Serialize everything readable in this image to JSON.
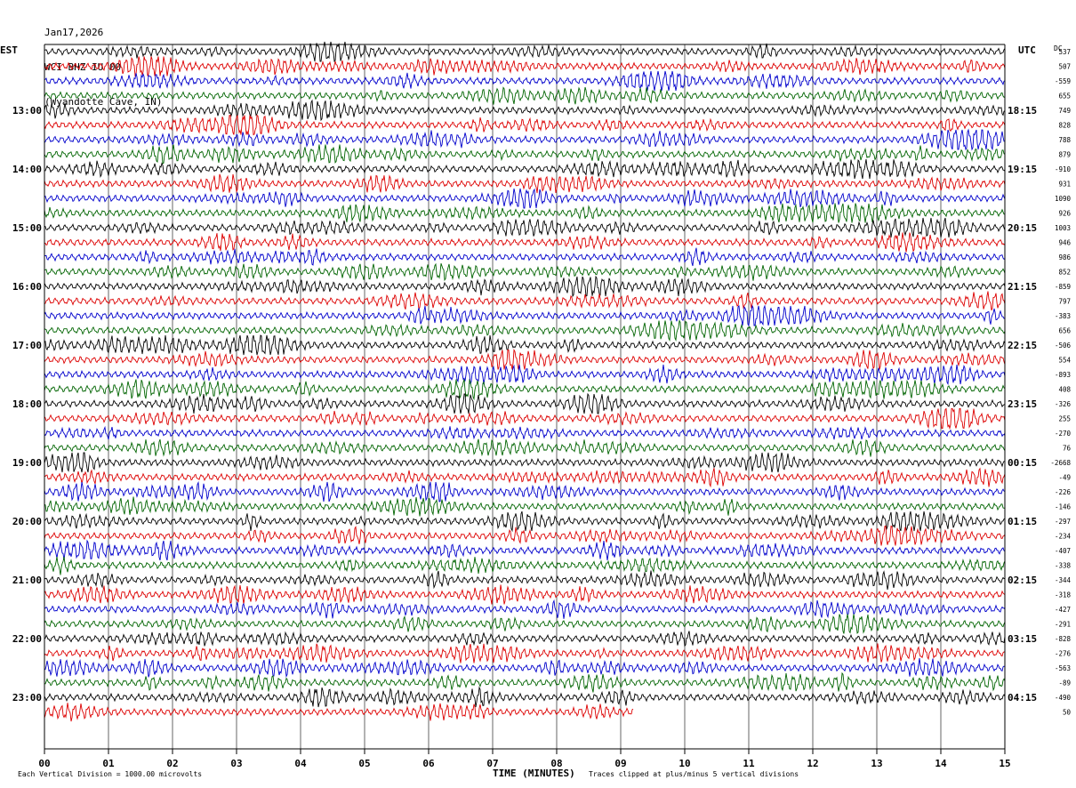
{
  "header": {
    "date": "Jan17,2026",
    "station": "WCI BHZ IU 00",
    "location": "(Wyandotte Cave, IN)"
  },
  "left_axis_title": "EST",
  "right_axis_title": "UTC",
  "dc_title": "DC",
  "footer": {
    "scale_text": "Each Vertical Division = 1000.00 microvolts",
    "clip_text": "Traces clipped at plus/minus 5 vertical divisions"
  },
  "colors": {
    "trace_cycle": [
      "#000000",
      "#dd0000",
      "#0000cc",
      "#006400"
    ],
    "grid": "#000000"
  },
  "chart_data": {
    "type": "line",
    "subtype": "helicorder",
    "xlabel": "TIME (MINUTES)",
    "xlim": [
      0,
      15
    ],
    "x_ticks": [
      "00",
      "01",
      "02",
      "03",
      "04",
      "05",
      "06",
      "07",
      "08",
      "09",
      "10",
      "11",
      "12",
      "13",
      "14",
      "15"
    ],
    "line_minutes": 15,
    "trace_count": 46,
    "last_trace_end_minute": 9.2,
    "left_labels": [
      {
        "line": 4,
        "text": "13:00"
      },
      {
        "line": 8,
        "text": "14:00"
      },
      {
        "line": 12,
        "text": "15:00"
      },
      {
        "line": 16,
        "text": "16:00"
      },
      {
        "line": 20,
        "text": "17:00"
      },
      {
        "line": 24,
        "text": "18:00"
      },
      {
        "line": 28,
        "text": "19:00"
      },
      {
        "line": 32,
        "text": "20:00"
      },
      {
        "line": 36,
        "text": "21:00"
      },
      {
        "line": 40,
        "text": "22:00"
      },
      {
        "line": 44,
        "text": "23:00"
      }
    ],
    "right_labels": [
      {
        "line": 4,
        "text": "18:15"
      },
      {
        "line": 8,
        "text": "19:15"
      },
      {
        "line": 12,
        "text": "20:15"
      },
      {
        "line": 16,
        "text": "21:15"
      },
      {
        "line": 20,
        "text": "22:15"
      },
      {
        "line": 24,
        "text": "23:15"
      },
      {
        "line": 28,
        "text": "00:15"
      },
      {
        "line": 32,
        "text": "01:15"
      },
      {
        "line": 36,
        "text": "02:15"
      },
      {
        "line": 40,
        "text": "03:15"
      },
      {
        "line": 44,
        "text": "04:15"
      }
    ],
    "dc_offsets": [
      "537",
      "507",
      "-559",
      "655",
      "749",
      "828",
      "788",
      "879",
      "-910",
      "931",
      "1090",
      "926",
      "1003",
      "946",
      "986",
      "852",
      "-859",
      "797",
      "-383",
      "656",
      "-506",
      "554",
      "-893",
      "408",
      "-326",
      "255",
      "-270",
      "76",
      "-2668",
      "-49",
      "-226",
      "-146",
      "-297",
      "-234",
      "-407",
      "-338",
      "-344",
      "-318",
      "-427",
      "-291",
      "-828",
      "-276",
      "-563",
      "-89",
      "-490",
      "50"
    ]
  }
}
